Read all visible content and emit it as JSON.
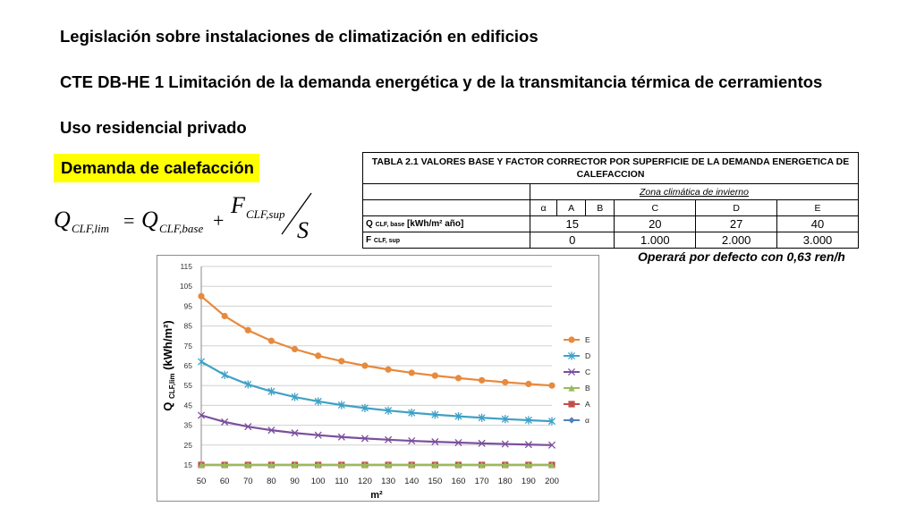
{
  "header": {
    "title1": "Legislación sobre instalaciones de climatización en edificios",
    "title2": "CTE DB-HE 1 Limitación de la demanda energética y de la transmitancia térmica de cerramientos",
    "title3": "Uso residencial privado"
  },
  "badge": {
    "label": "Demanda de calefacción"
  },
  "formula": {
    "lhs": "Q",
    "lhs_sub": "CLF,lim",
    "equals": "=",
    "base": "Q",
    "base_sub": "CLF,base",
    "plus": "+",
    "num": "F",
    "num_sub": "CLF,sup",
    "den": "S"
  },
  "table": {
    "title": "TABLA 2.1 VALORES BASE Y FACTOR CORRECTOR POR SUPERFICIE DE LA DEMANDA ENERGETICA DE CALEFACCION",
    "zone_header": "Zona climática de invierno",
    "zones": [
      "α",
      "A",
      "B",
      "C",
      "D",
      "E"
    ],
    "row1": {
      "label": "Q",
      "label_sub": "CLF, base",
      "label_unit": " [kWh/m² año]",
      "values": [
        "15",
        "20",
        "27",
        "40"
      ]
    },
    "row2": {
      "label": "F",
      "label_sub": "CLF, sup",
      "values": [
        "0",
        "1.000",
        "2.000",
        "3.000"
      ]
    }
  },
  "note": "Operará por defecto con 0,63 ren/h",
  "chart_data": {
    "type": "line",
    "x": [
      50,
      60,
      70,
      80,
      90,
      100,
      110,
      120,
      130,
      140,
      150,
      160,
      170,
      180,
      190,
      200
    ],
    "xlabel": "m²",
    "ylabel_main": "Q ",
    "ylabel_sub": "CLF,lim",
    "ylabel_unit": " (kWh/m²)",
    "ylim": [
      15,
      115
    ],
    "yticks": [
      15,
      25,
      35,
      45,
      55,
      65,
      75,
      85,
      95,
      105,
      115
    ],
    "legend_position": "right",
    "series": [
      {
        "name": "E",
        "color": "#e8893c",
        "marker": "circle",
        "values": [
          100,
          90,
          82.86,
          77.5,
          73.33,
          70,
          67.27,
          65,
          63.08,
          61.43,
          60,
          58.75,
          57.65,
          56.67,
          55.79,
          55
        ]
      },
      {
        "name": "D",
        "color": "#3fa1c6",
        "marker": "asterisk",
        "values": [
          67,
          60.33,
          55.57,
          52,
          49.22,
          47,
          45.18,
          43.67,
          42.38,
          41.29,
          40.33,
          39.5,
          38.76,
          38.11,
          37.53,
          37
        ]
      },
      {
        "name": "C",
        "color": "#7b4f9d",
        "marker": "x",
        "values": [
          40,
          36.67,
          34.29,
          32.5,
          31.11,
          30,
          29.09,
          28.33,
          27.69,
          27.14,
          26.67,
          26.25,
          25.88,
          25.56,
          25.26,
          25
        ]
      },
      {
        "name": "B",
        "color": "#9bbb59",
        "marker": "triangle",
        "values": [
          15,
          15,
          15,
          15,
          15,
          15,
          15,
          15,
          15,
          15,
          15,
          15,
          15,
          15,
          15,
          15
        ]
      },
      {
        "name": "A",
        "color": "#c0504d",
        "marker": "square",
        "values": [
          15,
          15,
          15,
          15,
          15,
          15,
          15,
          15,
          15,
          15,
          15,
          15,
          15,
          15,
          15,
          15
        ]
      },
      {
        "name": "α",
        "color": "#4f81bd",
        "marker": "diamond",
        "values": [
          15,
          15,
          15,
          15,
          15,
          15,
          15,
          15,
          15,
          15,
          15,
          15,
          15,
          15,
          15,
          15
        ]
      }
    ]
  }
}
